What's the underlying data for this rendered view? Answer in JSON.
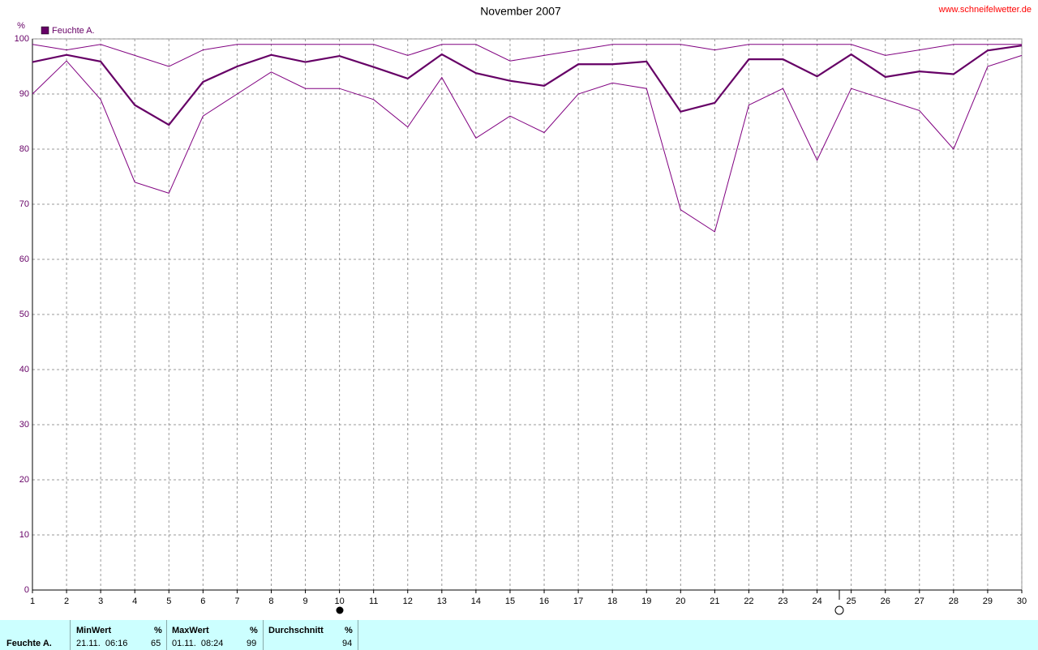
{
  "chart_data": {
    "type": "line",
    "title": "November 2007",
    "source": "www.schneifelwetter.de",
    "y_label": "%",
    "x": [
      1,
      2,
      3,
      4,
      5,
      6,
      7,
      8,
      9,
      10,
      11,
      12,
      13,
      14,
      15,
      16,
      17,
      18,
      19,
      20,
      21,
      22,
      23,
      24,
      25,
      26,
      27,
      28,
      29,
      30
    ],
    "xlim": [
      1,
      30
    ],
    "xticks": [
      1,
      2,
      3,
      4,
      5,
      6,
      7,
      8,
      9,
      10,
      11,
      12,
      13,
      14,
      15,
      16,
      17,
      18,
      19,
      20,
      21,
      22,
      23,
      24,
      25,
      26,
      27,
      28,
      29,
      30
    ],
    "ylim": [
      0,
      100
    ],
    "yticks": [
      0,
      10,
      20,
      30,
      40,
      50,
      60,
      70,
      80,
      90,
      100
    ],
    "grid": true,
    "series": [
      {
        "name": "Feuchte A.",
        "color": "#660066",
        "width": 2.2,
        "values": [
          95.8,
          97.1,
          95.9,
          88.0,
          84.4,
          92.2,
          95.0,
          97.1,
          95.8,
          96.9,
          94.9,
          92.8,
          97.2,
          93.8,
          92.4,
          91.5,
          95.4,
          95.4,
          95.9,
          86.8,
          88.4,
          96.3,
          96.3,
          93.2,
          97.2,
          93.1,
          94.1,
          93.6,
          97.9,
          98.8
        ]
      },
      {
        "color": "#800080",
        "width": 1,
        "values": [
          99,
          98,
          99,
          97,
          95,
          98,
          99,
          99,
          99,
          99,
          99,
          97,
          99,
          99,
          96,
          97,
          98,
          99,
          99,
          99,
          98,
          99,
          99,
          99,
          99,
          97,
          98,
          99,
          99,
          99
        ]
      },
      {
        "color": "#800080",
        "width": 1,
        "values": [
          90,
          96,
          89,
          74,
          72,
          86,
          90,
          94,
          91,
          91,
          89,
          84,
          93,
          82,
          86,
          83,
          90,
          92,
          91,
          69,
          65,
          88,
          91,
          78,
          91,
          89,
          87,
          80,
          95,
          97
        ]
      }
    ]
  },
  "stats": {
    "row_label": "Feuchte A.",
    "columns": [
      {
        "header": "MinWert",
        "unit": "%",
        "time": "21.11.  06:16",
        "value": 65
      },
      {
        "header": "MaxWert",
        "unit": "%",
        "time": "01.11.  08:24",
        "value": 99
      },
      {
        "header": "Durchschnitt",
        "unit": "%",
        "value": 94
      }
    ]
  }
}
